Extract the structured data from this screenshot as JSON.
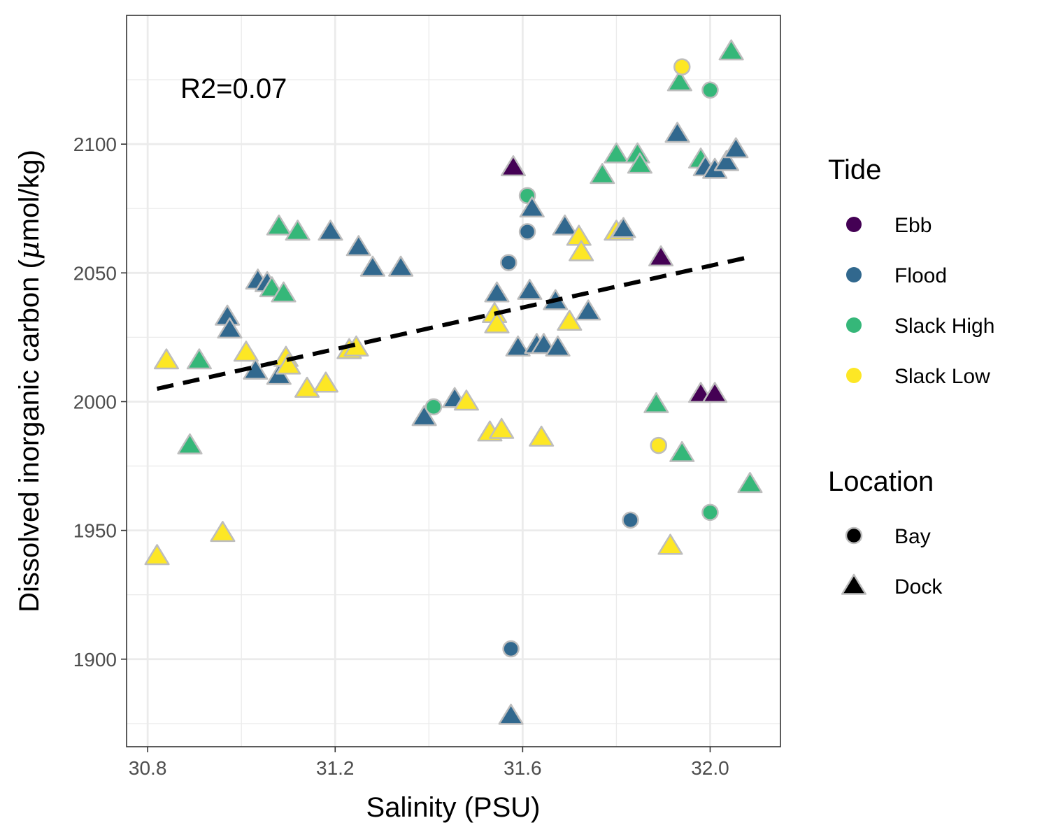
{
  "chart_data": {
    "type": "scatter",
    "xlabel": "Salinity (PSU)",
    "ylabel_main": "Dissolved inorganic carbon (",
    "ylabel_mu": "μ",
    "ylabel_rest": "mol/kg)",
    "xlim": [
      30.755,
      32.15
    ],
    "ylim": [
      1866,
      2150
    ],
    "x_ticks": [
      30.8,
      31.2,
      31.6,
      32.0
    ],
    "x_tick_labels": [
      "30.8",
      "31.2",
      "31.6",
      "32.0"
    ],
    "y_ticks": [
      1900,
      1950,
      2000,
      2050,
      2100
    ],
    "y_tick_labels": [
      "1900",
      "1950",
      "2000",
      "2050",
      "2100"
    ],
    "grid": true,
    "annotation": "R2=0.07",
    "annotation_at": [
      30.87,
      2119
    ],
    "trendline": {
      "style": "dashed",
      "color": "#000000",
      "x": [
        30.82,
        32.08
      ],
      "y": [
        2005,
        2056
      ]
    },
    "legend_position": "right",
    "legend_tide_title": "Tide",
    "legend_location_title": "Location",
    "tide_levels": [
      {
        "name": "Ebb",
        "color": "#440154"
      },
      {
        "name": "Flood",
        "color": "#31688e"
      },
      {
        "name": "Slack High",
        "color": "#35b779"
      },
      {
        "name": "Slack Low",
        "color": "#fde725"
      }
    ],
    "location_levels": [
      {
        "name": "Bay",
        "shape": "circle"
      },
      {
        "name": "Dock",
        "shape": "triangle"
      }
    ],
    "points": [
      {
        "x": 30.82,
        "y": 1940,
        "tide": "Slack Low",
        "loc": "Dock"
      },
      {
        "x": 30.84,
        "y": 2016,
        "tide": "Slack Low",
        "loc": "Dock"
      },
      {
        "x": 30.89,
        "y": 1983,
        "tide": "Slack High",
        "loc": "Dock"
      },
      {
        "x": 30.91,
        "y": 2016,
        "tide": "Slack High",
        "loc": "Dock"
      },
      {
        "x": 30.96,
        "y": 1949,
        "tide": "Slack Low",
        "loc": "Dock"
      },
      {
        "x": 30.97,
        "y": 2033,
        "tide": "Flood",
        "loc": "Dock"
      },
      {
        "x": 30.975,
        "y": 2028,
        "tide": "Flood",
        "loc": "Dock"
      },
      {
        "x": 31.01,
        "y": 2019,
        "tide": "Slack Low",
        "loc": "Dock"
      },
      {
        "x": 31.03,
        "y": 2012,
        "tide": "Flood",
        "loc": "Dock"
      },
      {
        "x": 31.035,
        "y": 2047,
        "tide": "Flood",
        "loc": "Dock"
      },
      {
        "x": 31.055,
        "y": 2046,
        "tide": "Flood",
        "loc": "Dock"
      },
      {
        "x": 31.065,
        "y": 2044,
        "tide": "Slack High",
        "loc": "Dock"
      },
      {
        "x": 31.08,
        "y": 2068,
        "tide": "Slack High",
        "loc": "Dock"
      },
      {
        "x": 31.08,
        "y": 2010,
        "tide": "Flood",
        "loc": "Dock"
      },
      {
        "x": 31.09,
        "y": 2042,
        "tide": "Slack High",
        "loc": "Dock"
      },
      {
        "x": 31.095,
        "y": 2017,
        "tide": "Slack Low",
        "loc": "Dock"
      },
      {
        "x": 31.1,
        "y": 2014,
        "tide": "Slack Low",
        "loc": "Dock"
      },
      {
        "x": 31.12,
        "y": 2066,
        "tide": "Slack High",
        "loc": "Dock"
      },
      {
        "x": 31.14,
        "y": 2005,
        "tide": "Slack Low",
        "loc": "Dock"
      },
      {
        "x": 31.18,
        "y": 2007,
        "tide": "Slack Low",
        "loc": "Dock"
      },
      {
        "x": 31.19,
        "y": 2066,
        "tide": "Flood",
        "loc": "Dock"
      },
      {
        "x": 31.23,
        "y": 2020,
        "tide": "Slack Low",
        "loc": "Dock"
      },
      {
        "x": 31.245,
        "y": 2021,
        "tide": "Slack Low",
        "loc": "Dock"
      },
      {
        "x": 31.25,
        "y": 2060,
        "tide": "Flood",
        "loc": "Dock"
      },
      {
        "x": 31.28,
        "y": 2052,
        "tide": "Flood",
        "loc": "Dock"
      },
      {
        "x": 31.34,
        "y": 2052,
        "tide": "Flood",
        "loc": "Dock"
      },
      {
        "x": 31.39,
        "y": 1994,
        "tide": "Flood",
        "loc": "Dock"
      },
      {
        "x": 31.41,
        "y": 1998,
        "tide": "Slack High",
        "loc": "Bay"
      },
      {
        "x": 31.455,
        "y": 2001,
        "tide": "Flood",
        "loc": "Dock"
      },
      {
        "x": 31.48,
        "y": 2000,
        "tide": "Slack Low",
        "loc": "Dock"
      },
      {
        "x": 31.53,
        "y": 1988,
        "tide": "Slack Low",
        "loc": "Dock"
      },
      {
        "x": 31.54,
        "y": 2034,
        "tide": "Slack Low",
        "loc": "Dock"
      },
      {
        "x": 31.545,
        "y": 2030,
        "tide": "Slack Low",
        "loc": "Dock"
      },
      {
        "x": 31.545,
        "y": 2042,
        "tide": "Flood",
        "loc": "Dock"
      },
      {
        "x": 31.555,
        "y": 1989,
        "tide": "Slack Low",
        "loc": "Dock"
      },
      {
        "x": 31.57,
        "y": 2054,
        "tide": "Flood",
        "loc": "Bay"
      },
      {
        "x": 31.575,
        "y": 1904,
        "tide": "Flood",
        "loc": "Bay"
      },
      {
        "x": 31.575,
        "y": 1878,
        "tide": "Flood",
        "loc": "Dock"
      },
      {
        "x": 31.58,
        "y": 2091,
        "tide": "Ebb",
        "loc": "Dock"
      },
      {
        "x": 31.59,
        "y": 2021,
        "tide": "Flood",
        "loc": "Dock"
      },
      {
        "x": 31.61,
        "y": 2080,
        "tide": "Slack High",
        "loc": "Bay"
      },
      {
        "x": 31.61,
        "y": 2066,
        "tide": "Flood",
        "loc": "Bay"
      },
      {
        "x": 31.615,
        "y": 2043,
        "tide": "Flood",
        "loc": "Dock"
      },
      {
        "x": 31.62,
        "y": 2075,
        "tide": "Flood",
        "loc": "Dock"
      },
      {
        "x": 31.63,
        "y": 2022,
        "tide": "Flood",
        "loc": "Dock"
      },
      {
        "x": 31.64,
        "y": 1986,
        "tide": "Slack Low",
        "loc": "Dock"
      },
      {
        "x": 31.645,
        "y": 2022,
        "tide": "Flood",
        "loc": "Dock"
      },
      {
        "x": 31.67,
        "y": 2039,
        "tide": "Flood",
        "loc": "Dock"
      },
      {
        "x": 31.675,
        "y": 2021,
        "tide": "Flood",
        "loc": "Dock"
      },
      {
        "x": 31.69,
        "y": 2068,
        "tide": "Flood",
        "loc": "Dock"
      },
      {
        "x": 31.7,
        "y": 2031,
        "tide": "Slack Low",
        "loc": "Dock"
      },
      {
        "x": 31.72,
        "y": 2064,
        "tide": "Slack Low",
        "loc": "Dock"
      },
      {
        "x": 31.725,
        "y": 2058,
        "tide": "Slack Low",
        "loc": "Dock"
      },
      {
        "x": 31.74,
        "y": 2035,
        "tide": "Flood",
        "loc": "Dock"
      },
      {
        "x": 31.77,
        "y": 2088,
        "tide": "Slack High",
        "loc": "Dock"
      },
      {
        "x": 31.8,
        "y": 2066,
        "tide": "Slack Low",
        "loc": "Dock"
      },
      {
        "x": 31.8,
        "y": 2096,
        "tide": "Slack High",
        "loc": "Dock"
      },
      {
        "x": 31.81,
        "y": 2066,
        "tide": "Slack Low",
        "loc": "Dock"
      },
      {
        "x": 31.815,
        "y": 2067,
        "tide": "Flood",
        "loc": "Dock"
      },
      {
        "x": 31.83,
        "y": 1954,
        "tide": "Flood",
        "loc": "Bay"
      },
      {
        "x": 31.845,
        "y": 2096,
        "tide": "Slack High",
        "loc": "Dock"
      },
      {
        "x": 31.85,
        "y": 2092,
        "tide": "Slack High",
        "loc": "Dock"
      },
      {
        "x": 31.885,
        "y": 1999,
        "tide": "Slack High",
        "loc": "Dock"
      },
      {
        "x": 31.89,
        "y": 1983,
        "tide": "Slack Low",
        "loc": "Bay"
      },
      {
        "x": 31.895,
        "y": 2056,
        "tide": "Ebb",
        "loc": "Dock"
      },
      {
        "x": 31.915,
        "y": 1944,
        "tide": "Slack Low",
        "loc": "Dock"
      },
      {
        "x": 31.93,
        "y": 2104,
        "tide": "Flood",
        "loc": "Dock"
      },
      {
        "x": 31.935,
        "y": 2124,
        "tide": "Slack High",
        "loc": "Dock"
      },
      {
        "x": 31.94,
        "y": 2130,
        "tide": "Slack Low",
        "loc": "Bay"
      },
      {
        "x": 31.94,
        "y": 1980,
        "tide": "Slack High",
        "loc": "Dock"
      },
      {
        "x": 31.98,
        "y": 2003,
        "tide": "Ebb",
        "loc": "Dock"
      },
      {
        "x": 31.98,
        "y": 2094,
        "tide": "Slack High",
        "loc": "Dock"
      },
      {
        "x": 31.99,
        "y": 2091,
        "tide": "Flood",
        "loc": "Dock"
      },
      {
        "x": 32.0,
        "y": 2121,
        "tide": "Slack High",
        "loc": "Bay"
      },
      {
        "x": 32.0,
        "y": 1957,
        "tide": "Slack High",
        "loc": "Bay"
      },
      {
        "x": 32.01,
        "y": 2003,
        "tide": "Ebb",
        "loc": "Dock"
      },
      {
        "x": 32.01,
        "y": 2090,
        "tide": "Flood",
        "loc": "Dock"
      },
      {
        "x": 32.035,
        "y": 2093,
        "tide": "Flood",
        "loc": "Dock"
      },
      {
        "x": 32.045,
        "y": 2136,
        "tide": "Slack High",
        "loc": "Dock"
      },
      {
        "x": 32.055,
        "y": 2098,
        "tide": "Flood",
        "loc": "Dock"
      },
      {
        "x": 32.085,
        "y": 1968,
        "tide": "Slack High",
        "loc": "Dock"
      }
    ]
  }
}
